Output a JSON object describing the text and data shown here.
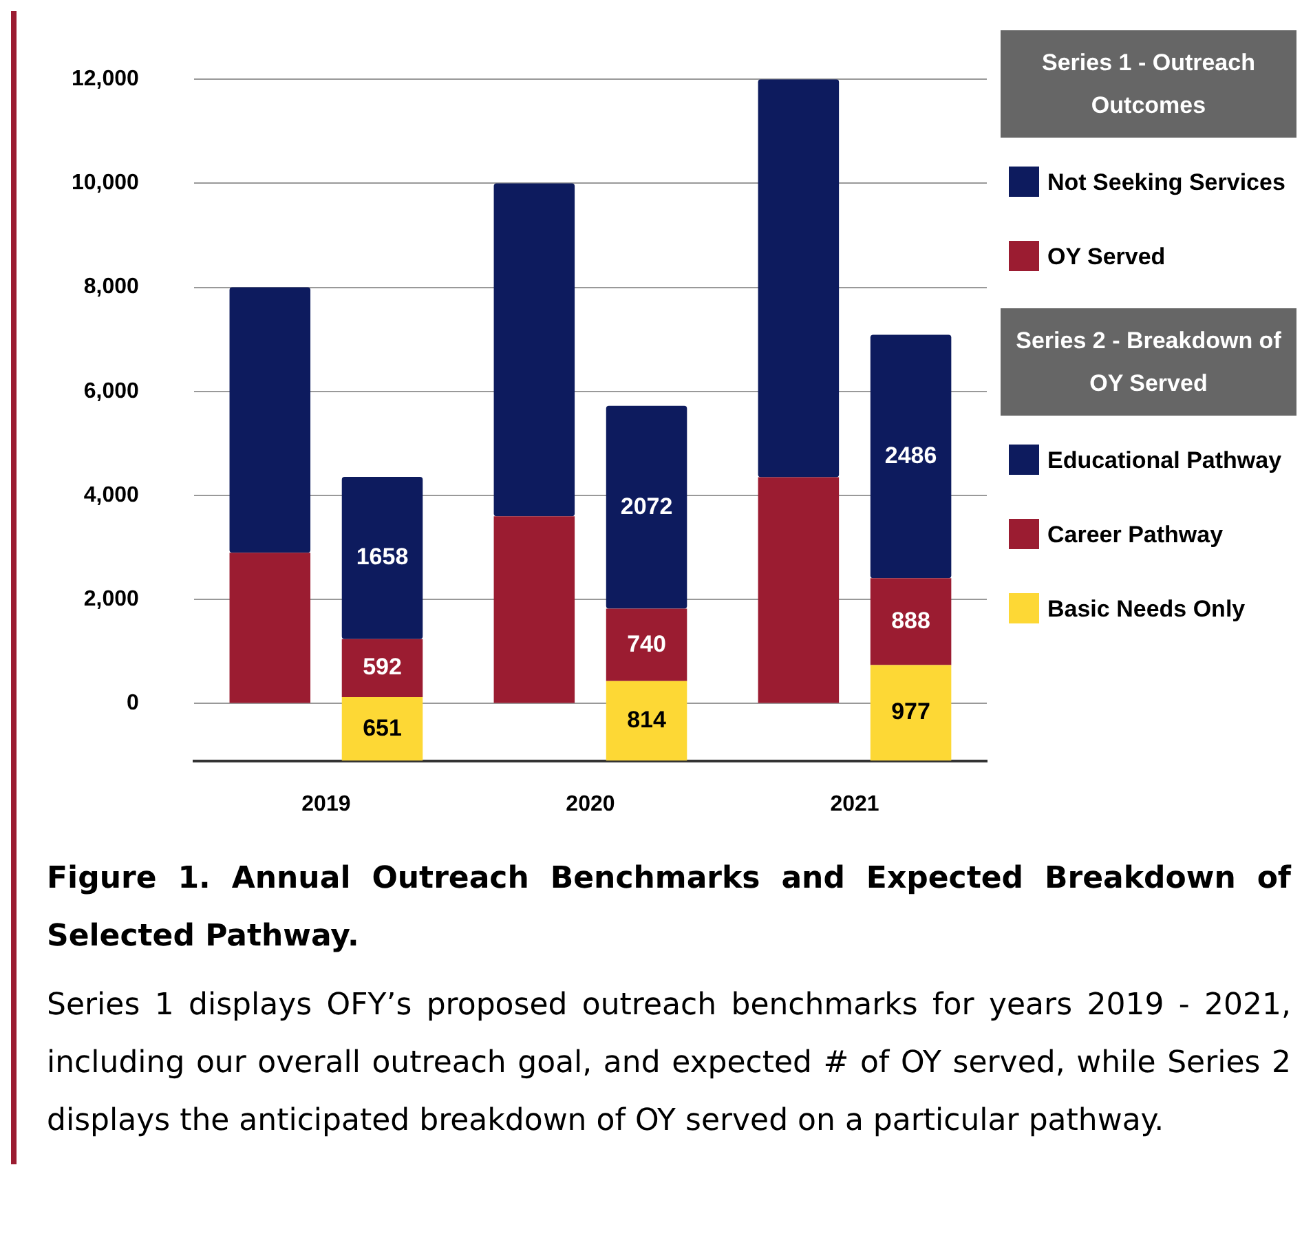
{
  "chart_data": {
    "type": "bar",
    "stacked": true,
    "title": "Figure 1. Annual Outreach Benchmarks and Expected Breakdown of Selected Pathway.",
    "categories": [
      "2019",
      "2020",
      "2021"
    ],
    "series": [
      {
        "name": "OY Served",
        "color": "#9b1c31",
        "values": [
          2900,
          3600,
          4350
        ]
      },
      {
        "name": "Not Seeking Services",
        "color": "#0d1b5e",
        "values": [
          5100,
          6400,
          7650
        ]
      },
      {
        "name": "Basic Needs Only",
        "color": "#fdd835",
        "values": [
          651,
          814,
          977
        ],
        "axis": "y2",
        "value_labels": [
          "651",
          "814",
          "977"
        ]
      },
      {
        "name": "Career Pathway",
        "color": "#9b1c31",
        "values": [
          592,
          740,
          888
        ],
        "axis": "y2",
        "value_labels": [
          "592",
          "740",
          "888"
        ]
      },
      {
        "name": "Educational Pathway",
        "color": "#0d1b5e",
        "values": [
          1658,
          2072,
          2486
        ],
        "axis": "y2",
        "value_labels": [
          "1658",
          "2072",
          "2486"
        ]
      }
    ],
    "ylim": [
      -1100,
      12000
    ],
    "yticks": [
      0,
      {
        "value": 2000,
        "label": "2,000"
      },
      {
        "value": 4000,
        "label": "4,000"
      },
      {
        "value": 6000,
        "label": "6,000"
      },
      {
        "value": 8000,
        "label": "8,000"
      },
      {
        "value": 10000,
        "label": "10,000"
      },
      {
        "value": 12000,
        "label": "12,000"
      }
    ],
    "grid": "y",
    "legend": "right",
    "annotations": [
      "Series 1 - Outreach Outcomes",
      "Series 2 - Breakdown of OY Served",
      "Series 1 displays OFY’s proposed outreach benchmarks for years 2019 - 2021, including our overall outreach goal, and expected # of OY served, while Series 2 displays the anticipated breakdown of OY served on a particular pathway."
    ]
  }
}
